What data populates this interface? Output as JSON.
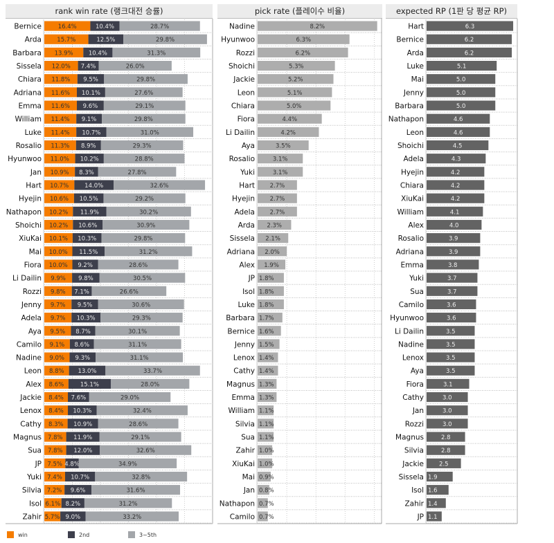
{
  "chart_data": [
    {
      "type": "bar",
      "stacked": true,
      "orientation": "horizontal",
      "title": "rank win rate (랭크대전 승률)",
      "xlim": [
        0,
        60
      ],
      "categories": [
        "Bernice",
        "Arda",
        "Barbara",
        "Sissela",
        "Chiara",
        "Adriana",
        "Emma",
        "William",
        "Luke",
        "Rosalio",
        "Hyunwoo",
        "Jan",
        "Hart",
        "Hyejin",
        "Nathapon",
        "Shoichi",
        "XiuKai",
        "Mai",
        "Fiora",
        "Li Dailin",
        "Rozzi",
        "Jenny",
        "Adela",
        "Aya",
        "Camilo",
        "Nadine",
        "Leon",
        "Alex",
        "Jackie",
        "Lenox",
        "Cathy",
        "Magnus",
        "Sua",
        "JP",
        "Yuki",
        "Silvia",
        "Isol",
        "Zahir"
      ],
      "series": [
        {
          "name": "win",
          "color": "#f57c00",
          "values": [
            16.4,
            15.7,
            13.9,
            12.0,
            11.8,
            11.6,
            11.6,
            11.4,
            11.4,
            11.3,
            11.0,
            10.9,
            10.7,
            10.6,
            10.2,
            10.2,
            10.1,
            10.0,
            10.0,
            9.9,
            9.8,
            9.7,
            9.7,
            9.5,
            9.1,
            9.0,
            8.8,
            8.6,
            8.4,
            8.4,
            8.3,
            7.8,
            7.8,
            7.5,
            7.4,
            7.2,
            6.1,
            5.7
          ]
        },
        {
          "name": "2nd",
          "color": "#3d3f4c",
          "values": [
            10.4,
            12.5,
            10.4,
            7.4,
            9.5,
            10.1,
            9.6,
            9.1,
            10.7,
            8.9,
            10.2,
            8.3,
            14.0,
            10.5,
            11.9,
            10.6,
            10.3,
            11.5,
            9.2,
            9.8,
            7.1,
            9.5,
            10.3,
            8.7,
            8.6,
            9.3,
            13.0,
            15.1,
            7.6,
            10.3,
            10.9,
            11.9,
            12.0,
            4.8,
            10.7,
            9.6,
            8.2,
            9.0
          ]
        },
        {
          "name": "3~5th",
          "color": "#a3a6aa",
          "values": [
            28.7,
            29.8,
            31.3,
            26.0,
            29.8,
            27.6,
            29.1,
            29.8,
            31.0,
            29.3,
            28.8,
            27.8,
            32.6,
            29.2,
            30.2,
            30.9,
            29.8,
            31.2,
            28.6,
            30.5,
            26.6,
            30.6,
            29.3,
            30.1,
            31.1,
            31.1,
            33.7,
            28.0,
            29.0,
            32.4,
            28.6,
            29.1,
            32.6,
            34.9,
            32.8,
            31.6,
            31.2,
            33.2
          ]
        }
      ],
      "value_suffix": "%",
      "legend": "bottom-left"
    },
    {
      "type": "bar",
      "orientation": "horizontal",
      "title": "pick rate (플레이수 비율)",
      "xlim": [
        0,
        8.5
      ],
      "color": "#adadad",
      "categories": [
        "Nadine",
        "Hyunwoo",
        "Rozzi",
        "Shoichi",
        "Jackie",
        "Leon",
        "Chiara",
        "Fiora",
        "Li Dailin",
        "Aya",
        "Rosalio",
        "Yuki",
        "Hart",
        "Hyejin",
        "Adela",
        "Arda",
        "Sissela",
        "Adriana",
        "Alex",
        "JP",
        "Isol",
        "Luke",
        "Barbara",
        "Bernice",
        "Jenny",
        "Lenox",
        "Cathy",
        "Magnus",
        "Emma",
        "William",
        "Silvia",
        "Sua",
        "Zahir",
        "XiuKai",
        "Mai",
        "Jan",
        "Nathapon",
        "Camilo"
      ],
      "values": [
        8.2,
        6.3,
        6.2,
        5.3,
        5.2,
        5.1,
        5.0,
        4.4,
        4.2,
        3.5,
        3.1,
        3.1,
        2.7,
        2.7,
        2.7,
        2.3,
        2.1,
        2.0,
        1.9,
        1.8,
        1.8,
        1.8,
        1.7,
        1.6,
        1.5,
        1.4,
        1.4,
        1.3,
        1.3,
        1.1,
        1.1,
        1.1,
        1.0,
        1.0,
        0.9,
        0.8,
        0.7,
        0.7
      ],
      "value_suffix": "%"
    },
    {
      "type": "bar",
      "orientation": "horizontal",
      "title": "expected RP (1판 당 평균 RP)",
      "xlim": [
        0,
        6.6
      ],
      "color": "#636363",
      "categories": [
        "Hart",
        "Bernice",
        "Arda",
        "Luke",
        "Mai",
        "Jenny",
        "Barbara",
        "Nathapon",
        "Leon",
        "Shoichi",
        "Adela",
        "Hyejin",
        "Chiara",
        "XiuKai",
        "William",
        "Alex",
        "Rosalio",
        "Adriana",
        "Emma",
        "Yuki",
        "Sua",
        "Camilo",
        "Hyunwoo",
        "Li Dailin",
        "Nadine",
        "Lenox",
        "Aya",
        "Fiora",
        "Cathy",
        "Jan",
        "Rozzi",
        "Magnus",
        "Silvia",
        "Jackie",
        "Sissela",
        "Isol",
        "Zahir",
        "JP"
      ],
      "values": [
        6.3,
        6.2,
        6.2,
        5.1,
        5.0,
        5.0,
        5.0,
        4.6,
        4.6,
        4.5,
        4.3,
        4.2,
        4.2,
        4.2,
        4.1,
        4.0,
        3.9,
        3.9,
        3.8,
        3.7,
        3.7,
        3.6,
        3.6,
        3.5,
        3.5,
        3.5,
        3.5,
        3.1,
        3.0,
        3.0,
        3.0,
        2.8,
        2.8,
        2.5,
        1.9,
        1.6,
        1.4,
        1.1
      ],
      "value_suffix": ""
    }
  ]
}
